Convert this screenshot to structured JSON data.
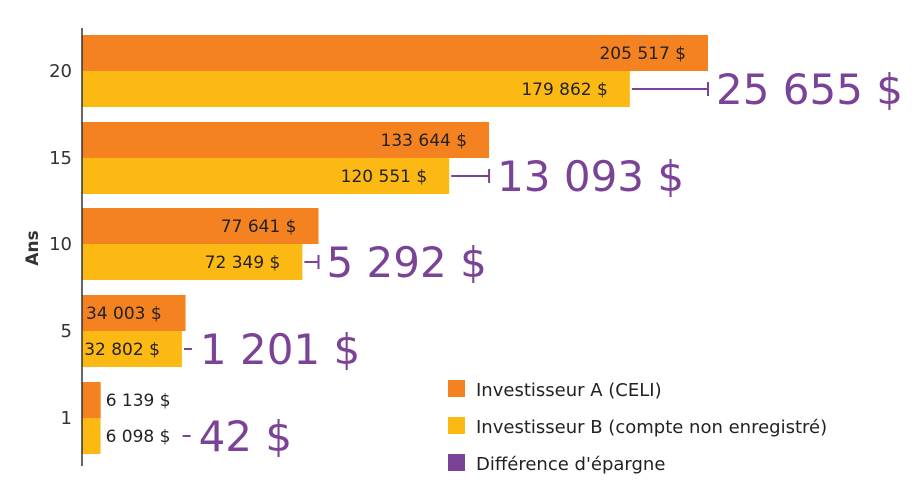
{
  "chart_data": {
    "type": "bar",
    "orientation": "horizontal",
    "ylabel": "Ans",
    "categories": [
      "20",
      "15",
      "10",
      "5",
      "1"
    ],
    "series": [
      {
        "name": "Investisseur A (CELI)",
        "values": [
          205517,
          133644,
          77641,
          34003,
          6139
        ]
      },
      {
        "name": "Investisseur B (compte non enregistré)",
        "values": [
          179862,
          120551,
          72349,
          32802,
          6098
        ]
      }
    ],
    "value_labels": {
      "a": [
        "205 517 $",
        "133 644 $",
        "77 641 $",
        "34 003 $",
        "6 139 $"
      ],
      "b": [
        "179 862 $",
        "120 551 $",
        "72 349 $",
        "32 802 $",
        "6 098 $"
      ]
    },
    "difference": {
      "name": "Différence d'épargne",
      "values": [
        25655,
        13093,
        5292,
        1201,
        42
      ],
      "labels": [
        "25 655 $",
        "13 093 $",
        "5 292 $",
        "1 201 $",
        "42 $"
      ]
    },
    "xlim": [
      0,
      205517
    ],
    "legend_position": "bottom-right",
    "grid": false
  },
  "colors": {
    "a": "#F58220",
    "b": "#FDB913",
    "diff": "#7B4397",
    "axis": "#333333"
  }
}
